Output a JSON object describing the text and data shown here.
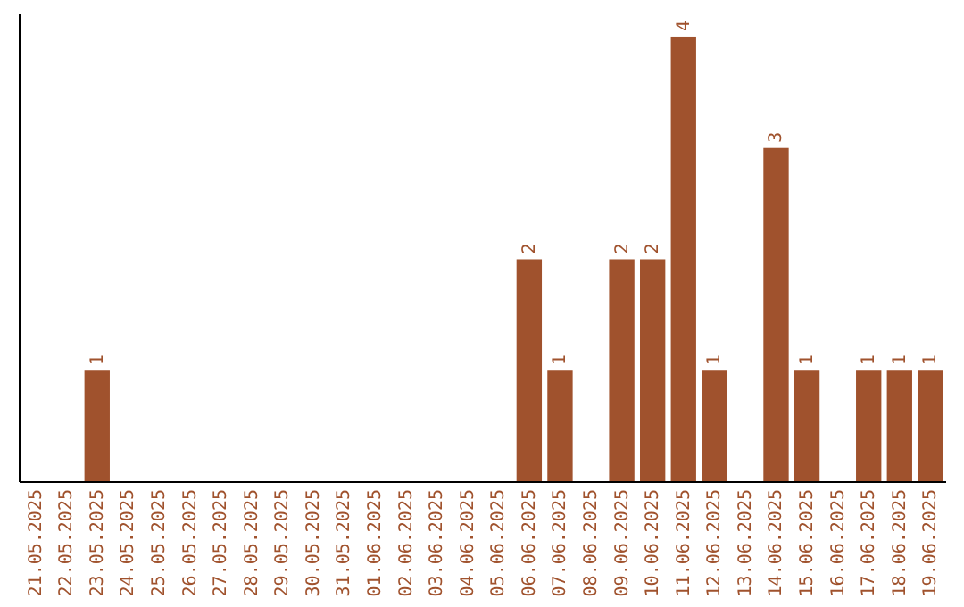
{
  "chart_data": {
    "type": "bar",
    "categories": [
      "21.05.2025",
      "22.05.2025",
      "23.05.2025",
      "24.05.2025",
      "25.05.2025",
      "26.05.2025",
      "27.05.2025",
      "28.05.2025",
      "29.05.2025",
      "30.05.2025",
      "31.05.2025",
      "01.06.2025",
      "02.06.2025",
      "03.06.2025",
      "04.06.2025",
      "05.06.2025",
      "06.06.2025",
      "07.06.2025",
      "08.06.2025",
      "09.06.2025",
      "10.06.2025",
      "11.06.2025",
      "12.06.2025",
      "13.06.2025",
      "14.06.2025",
      "15.06.2025",
      "16.06.2025",
      "17.06.2025",
      "18.06.2025",
      "19.06.2025"
    ],
    "values": [
      null,
      null,
      1,
      null,
      null,
      null,
      null,
      null,
      null,
      null,
      null,
      null,
      null,
      null,
      null,
      null,
      2,
      1,
      null,
      2,
      2,
      4,
      1,
      null,
      3,
      1,
      null,
      1,
      1,
      1
    ],
    "color": "#a0522d",
    "ylim": [
      0,
      4.2
    ],
    "tick_labels": "x",
    "data_labels": true
  }
}
